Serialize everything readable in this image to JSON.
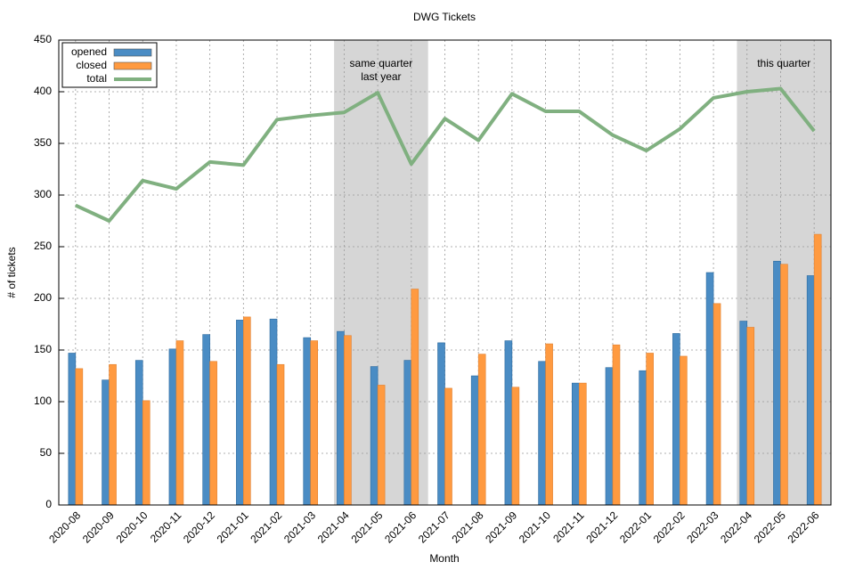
{
  "chart_data": {
    "type": "bar-line",
    "title": "DWG Tickets",
    "x_label": "Month",
    "y_label": "# of tickets",
    "categories": [
      "2020-08",
      "2020-09",
      "2020-10",
      "2020-11",
      "2020-12",
      "2021-01",
      "2021-02",
      "2021-03",
      "2021-04",
      "2021-05",
      "2021-06",
      "2021-07",
      "2021-08",
      "2021-09",
      "2021-10",
      "2021-11",
      "2021-12",
      "2022-01",
      "2022-02",
      "2022-03",
      "2022-04",
      "2022-05",
      "2022-06"
    ],
    "series": [
      {
        "name": "opened",
        "type": "bar",
        "color": "#4a8cc4",
        "values": [
          147,
          121,
          140,
          151,
          165,
          179,
          180,
          162,
          168,
          134,
          140,
          157,
          125,
          159,
          139,
          118,
          133,
          130,
          166,
          225,
          178,
          236,
          222
        ]
      },
      {
        "name": "closed",
        "type": "bar",
        "color": "#ff9a40",
        "values": [
          132,
          136,
          101,
          159,
          139,
          182,
          136,
          159,
          164,
          116,
          209,
          113,
          146,
          114,
          156,
          118,
          155,
          147,
          144,
          195,
          172,
          233,
          262
        ]
      },
      {
        "name": "total",
        "type": "line",
        "color": "#80b080",
        "values": [
          290,
          275,
          314,
          306,
          332,
          329,
          373,
          377,
          380,
          399,
          330,
          374,
          353,
          398,
          381,
          381,
          358,
          343,
          364,
          394,
          400,
          403,
          362
        ]
      }
    ],
    "highlights": [
      {
        "start": "2021-04",
        "end": "2021-06",
        "label": [
          "same quarter",
          "last year"
        ]
      },
      {
        "start": "2022-04",
        "end": "2022-06",
        "label": [
          "this quarter"
        ]
      }
    ],
    "ylim": [
      0,
      450
    ],
    "yticks": [
      0,
      50,
      100,
      150,
      200,
      250,
      300,
      350,
      400,
      450
    ],
    "grid": true,
    "legend": "top-left"
  }
}
